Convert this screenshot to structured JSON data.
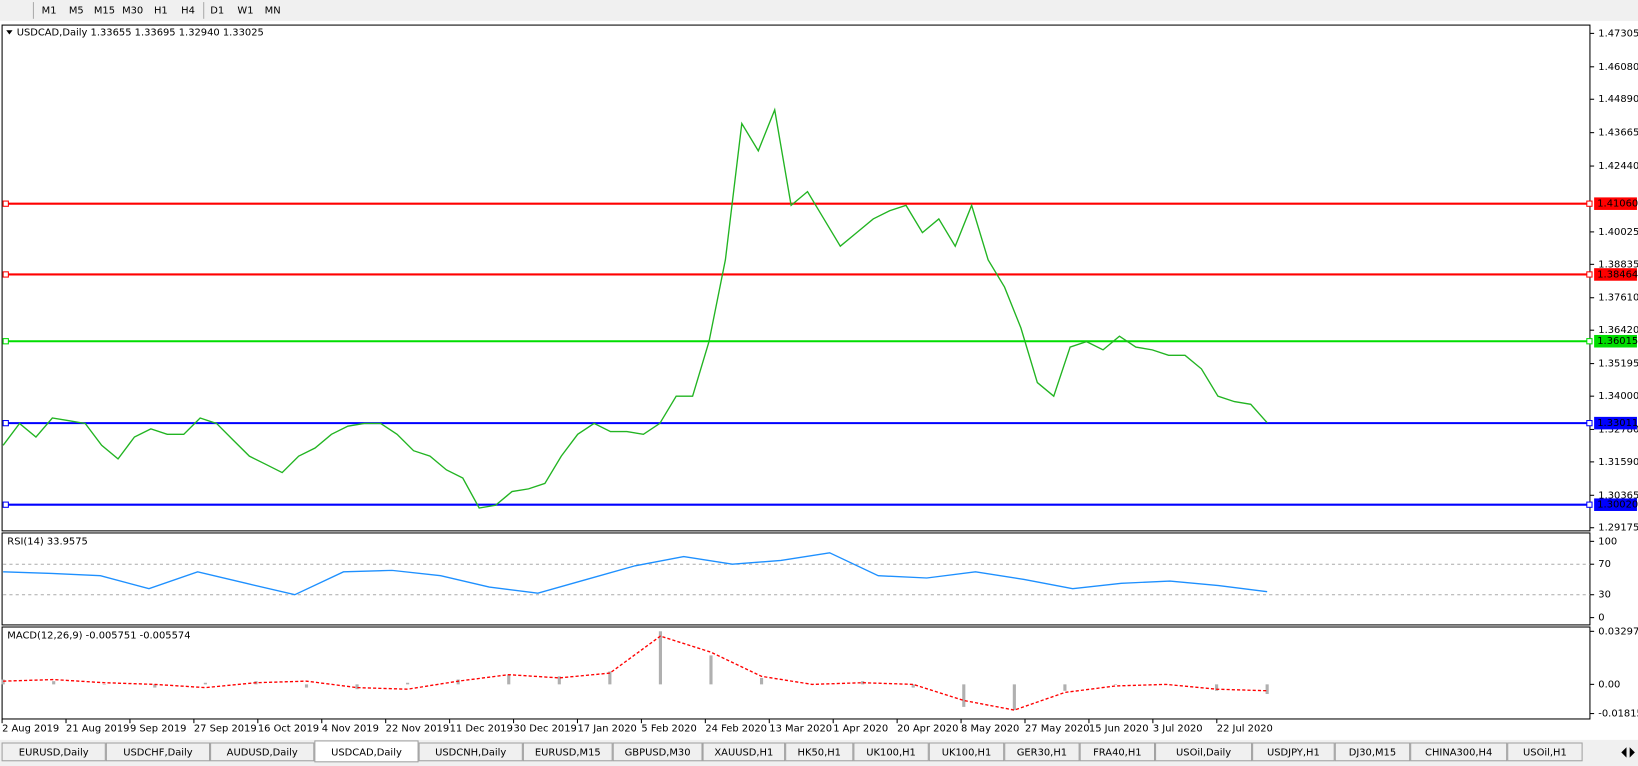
{
  "toolbar": {
    "timeframes": [
      "M1",
      "M5",
      "M15",
      "M30",
      "H1",
      "H4",
      "D1",
      "W1",
      "MN"
    ]
  },
  "main_chart": {
    "type": "line",
    "title": "USDCAD,Daily  1.33655 1.33695 1.32940 1.33025",
    "color": "#22b422",
    "values": [
      1.322,
      1.33,
      1.325,
      1.332,
      1.331,
      1.33,
      1.322,
      1.317,
      1.325,
      1.328,
      1.326,
      1.326,
      1.332,
      1.33,
      1.324,
      1.318,
      1.315,
      1.312,
      1.318,
      1.321,
      1.326,
      1.329,
      1.33,
      1.33,
      1.326,
      1.32,
      1.318,
      1.313,
      1.31,
      1.299,
      1.3,
      1.305,
      1.306,
      1.308,
      1.318,
      1.326,
      1.33,
      1.327,
      1.327,
      1.326,
      1.33,
      1.34,
      1.34,
      1.36,
      1.39,
      1.44,
      1.43,
      1.445,
      1.41,
      1.415,
      1.405,
      1.395,
      1.4,
      1.405,
      1.408,
      1.41,
      1.4,
      1.405,
      1.395,
      1.41,
      1.39,
      1.38,
      1.365,
      1.345,
      1.34,
      1.358,
      1.36,
      1.357,
      1.362,
      1.358,
      1.357,
      1.355,
      1.355,
      1.35,
      1.34,
      1.338,
      1.337,
      1.33025
    ],
    "ylim": [
      1.2906,
      1.4761
    ],
    "yticks": [
      {
        "value": 1.47305,
        "label": "1.47305"
      },
      {
        "value": 1.4608,
        "label": "1.46080"
      },
      {
        "value": 1.4489,
        "label": "1.44890"
      },
      {
        "value": 1.43665,
        "label": "1.43665"
      },
      {
        "value": 1.4244,
        "label": "1.42440"
      },
      {
        "value": 1.40025,
        "label": "1.40025"
      },
      {
        "value": 1.38835,
        "label": "1.38835"
      },
      {
        "value": 1.3761,
        "label": "1.37610"
      },
      {
        "value": 1.3642,
        "label": "1.36420"
      },
      {
        "value": 1.35195,
        "label": "1.35195"
      },
      {
        "value": 1.34,
        "label": "1.34000"
      },
      {
        "value": 1.3278,
        "label": "1.32780"
      },
      {
        "value": 1.3159,
        "label": "1.31590"
      },
      {
        "value": 1.30365,
        "label": "1.30365"
      },
      {
        "value": 1.29175,
        "label": "1.29175"
      }
    ],
    "levels": [
      {
        "value": 1.4106,
        "label": "1.41060",
        "color": "#ff0000"
      },
      {
        "value": 1.38464,
        "label": "1.38464",
        "color": "#ff0000"
      },
      {
        "value": 1.36015,
        "label": "1.36015",
        "color": "#00dd00"
      },
      {
        "value": 1.33011,
        "label": "1.33011",
        "color": "#0000ff"
      },
      {
        "value": 1.3002,
        "label": "1.30020",
        "color": "#0000ff"
      }
    ]
  },
  "rsi": {
    "title": "RSI(14) 33.9575",
    "color": "#1e90ff",
    "values": [
      60,
      58,
      55,
      38,
      60,
      45,
      30,
      60,
      62,
      55,
      40,
      32,
      50,
      68,
      80,
      70,
      75,
      85,
      55,
      52,
      60,
      50,
      38,
      45,
      48,
      42,
      34
    ],
    "ylim": [
      -9.6,
      111
    ],
    "yticks": [
      100,
      70,
      30,
      0
    ],
    "levels": [
      70,
      30
    ]
  },
  "macd": {
    "title": "MACD(12,26,9) -0.005751 -0.005574",
    "color": "#ff0000",
    "histogram": [
      0.003,
      0.002,
      0.0,
      -0.002,
      0.001,
      0.002,
      -0.002,
      -0.003,
      0.001,
      0.003,
      0.006,
      0.005,
      0.008,
      0.033,
      0.018,
      0.004,
      0.0,
      0.002,
      -0.002,
      -0.014,
      -0.016,
      -0.004,
      0.0,
      0.0,
      -0.004,
      -0.006
    ],
    "signal": [
      0.002,
      0.003,
      0.001,
      0.0,
      -0.002,
      0.001,
      0.002,
      -0.002,
      -0.003,
      0.002,
      0.006,
      0.004,
      0.007,
      0.03,
      0.02,
      0.005,
      0.0,
      0.001,
      0.0,
      -0.01,
      -0.016,
      -0.005,
      -0.001,
      0.0,
      -0.003,
      -0.004
    ],
    "ylim": [
      -0.02152,
      0.03566
    ],
    "yticks": [
      0.032972,
      {
        "value": 0,
        "label": "0.00"
      },
      -0.018154
    ]
  },
  "date_axis": {
    "labels": [
      "2 Aug 2019",
      "21 Aug 2019",
      "9 Sep 2019",
      "27 Sep 2019",
      "16 Oct 2019",
      "4 Nov 2019",
      "22 Nov 2019",
      "11 Dec 2019",
      "30 Dec 2019",
      "17 Jan 2020",
      "5 Feb 2020",
      "24 Feb 2020",
      "13 Mar 2020",
      "1 Apr 2020",
      "20 Apr 2020",
      "8 May 2020",
      "27 May 2020",
      "15 Jun 2020",
      "3 Jul 2020",
      "22 Jul 2020"
    ]
  },
  "tabs": [
    "EURUSD,Daily",
    "USDCHF,Daily",
    "AUDUSD,Daily",
    "USDCAD,Daily",
    "USDCNH,Daily",
    "EURUSD,M15",
    "GBPUSD,M30",
    "XAUUSD,H1",
    "HK50,H1",
    "UK100,H1",
    "UK100,H1",
    "GER30,H1",
    "FRA40,H1",
    "USOil,Daily",
    "USDJPY,H1",
    "DJ30,M15",
    "CHINA300,H4",
    "USOil,H1"
  ],
  "active_tab": 3
}
